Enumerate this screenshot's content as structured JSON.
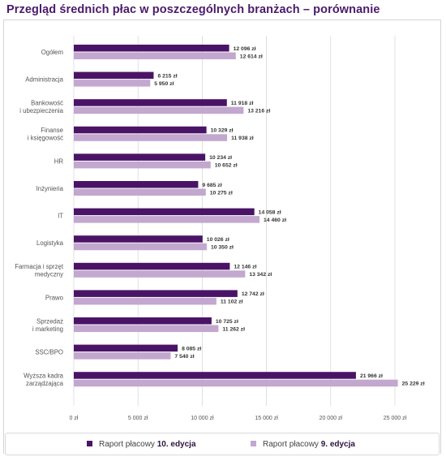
{
  "title": "Przegląd średnich płac w poszczególnych branżach – porównanie",
  "colors": {
    "title": "#4b1a6b",
    "edition10": "#4a1466",
    "edition9": "#c2a7cf",
    "grid": "#d9d9d9"
  },
  "chart_data": {
    "type": "bar",
    "orientation": "horizontal",
    "categories": [
      [
        "Ogółem"
      ],
      [
        "Administracja"
      ],
      [
        "Bankowość",
        "i ubezpieczenia"
      ],
      [
        "Finanse",
        "i księgowość"
      ],
      [
        "HR"
      ],
      [
        "Inżynieria"
      ],
      [
        "IT"
      ],
      [
        "Logistyka"
      ],
      [
        "Farmacja i sprzęt",
        "medyczny"
      ],
      [
        "Prawo"
      ],
      [
        "Sprzedaż",
        "i marketing"
      ],
      [
        "SSC/BPO"
      ],
      [
        "Wyższa kadra",
        "zarządzająca"
      ]
    ],
    "series": [
      {
        "name": "Raport płacowy 10. edycja",
        "values": [
          12096,
          6215,
          11918,
          10329,
          10234,
          9685,
          14058,
          10026,
          12146,
          12742,
          10725,
          8085,
          21966
        ],
        "labels": [
          "12 096 zł",
          "6 215 zł",
          "11 918 zł",
          "10 329 zł",
          "10 234 zł",
          "9 685 zł",
          "14 058 zł",
          "10 026 zł",
          "12 146 zł",
          "12 742 zł",
          "10 725 zł",
          "8 085 zł",
          "21 966 zł"
        ]
      },
      {
        "name": "Raport płacowy 9. edycja",
        "values": [
          12614,
          5950,
          13216,
          11938,
          10652,
          10275,
          14460,
          10350,
          13342,
          11102,
          11262,
          7540,
          25229
        ],
        "labels": [
          "12 614 zł",
          "5 950 zł",
          "13 216 zł",
          "11 938 zł",
          "10 652 zł",
          "10 275 zł",
          "14 460 zł",
          "10 350 zł",
          "13 342 zł",
          "11 102 zł",
          "11 262 zł",
          "7 540 zł",
          "25 229 zł"
        ]
      }
    ],
    "xlim": [
      0,
      25000
    ],
    "xticks": [
      0,
      5000,
      10000,
      15000,
      20000,
      25000
    ],
    "xtick_labels": [
      "0 zł",
      "5 000 zł",
      "10 000 zł",
      "15 000 zł",
      "20 000 zł",
      "25 000 zł"
    ],
    "grid": true,
    "legend_position": "bottom"
  },
  "legend": {
    "items": [
      {
        "prefix": "Raport płacowy",
        "bold": "10. edycja"
      },
      {
        "prefix": "Raport płacowy",
        "bold": "9. edycja"
      }
    ]
  }
}
